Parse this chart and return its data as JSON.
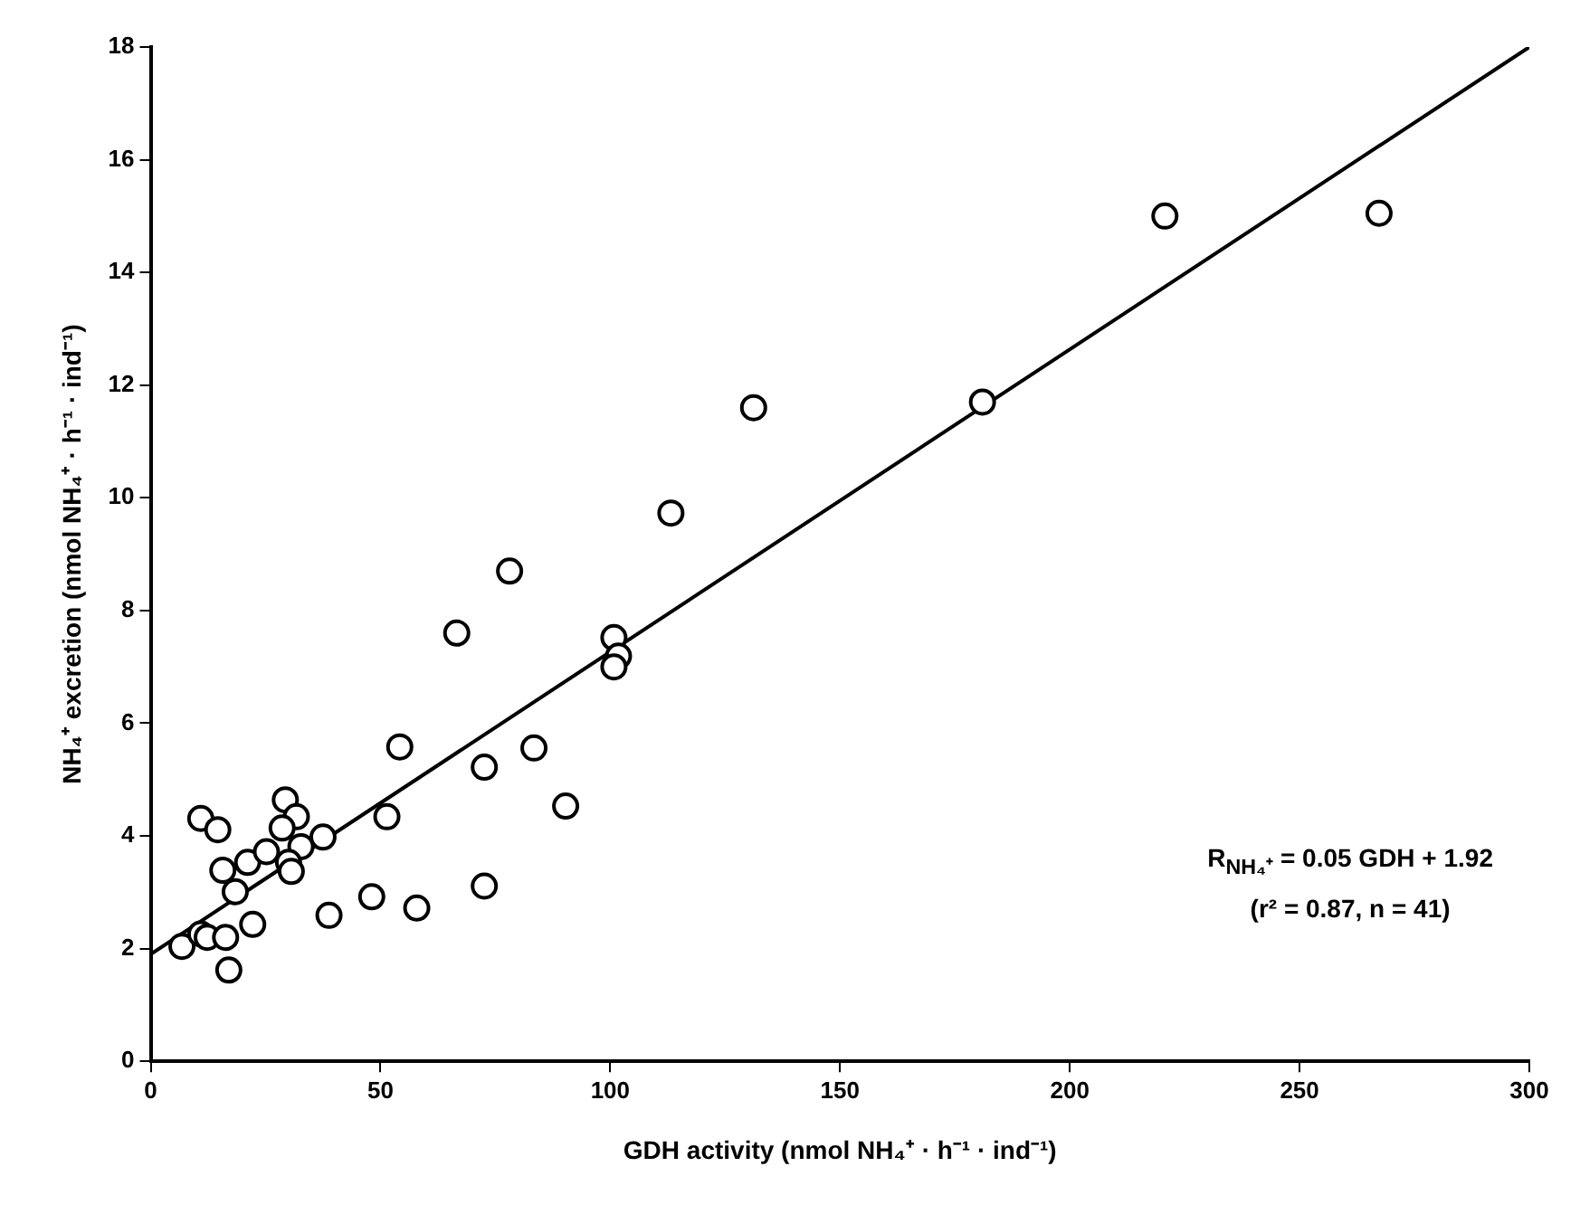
{
  "chart_data": {
    "type": "scatter",
    "xlabel": "GDH activity (nmol NH₄⁺ · h⁻¹ · ind⁻¹)",
    "ylabel": "NH₄⁺ excretion (nmol NH₄⁺ · h⁻¹ · ind⁻¹)",
    "xlim": [
      0,
      300
    ],
    "xticks": [
      0,
      50,
      100,
      150,
      200,
      250,
      300
    ],
    "ylim": [
      0,
      18
    ],
    "yticks": [
      0,
      2,
      4,
      6,
      8,
      10,
      12,
      14,
      16,
      18
    ],
    "grid": false,
    "legend": false,
    "annotations": [
      "R$_{NH₄⁺}$ = 0.05 GDH + 1.92",
      "(r² = 0.87, n = 41)"
    ],
    "series": [
      {
        "marker": "circle",
        "color": "#000000",
        "x": [
          6.8,
          10.9,
          12.3,
          16.3,
          17,
          22.2,
          18.4,
          15.7,
          21.1,
          25.2,
          10.9,
          14.6,
          29.3,
          31.7,
          28.6,
          32.7,
          30,
          30.6,
          37.5,
          38.8,
          48.1,
          57.9,
          51.4,
          54.2,
          72.6,
          72.6,
          83.4,
          90.3,
          66.6,
          78.1,
          100.8,
          101.8,
          100.8,
          113.2,
          131.2,
          181,
          220.7,
          267.3
        ],
        "values": [
          2.04,
          2.26,
          2.2,
          2.2,
          1.62,
          2.43,
          3.01,
          3.39,
          3.53,
          3.72,
          4.31,
          4.11,
          4.64,
          4.34,
          4.14,
          3.81,
          3.53,
          3.37,
          3.98,
          2.59,
          2.92,
          2.72,
          4.34,
          5.58,
          5.22,
          3.11,
          5.56,
          4.53,
          7.6,
          8.7,
          7.52,
          7.19,
          7.0,
          9.73,
          11.6,
          11.7,
          15.0,
          15.05
        ]
      },
      {
        "type": "line",
        "marker": "none",
        "line_style": "solid",
        "color": "#000000",
        "x": [
          0,
          300
        ],
        "values": [
          1.9,
          18
        ]
      }
    ]
  }
}
